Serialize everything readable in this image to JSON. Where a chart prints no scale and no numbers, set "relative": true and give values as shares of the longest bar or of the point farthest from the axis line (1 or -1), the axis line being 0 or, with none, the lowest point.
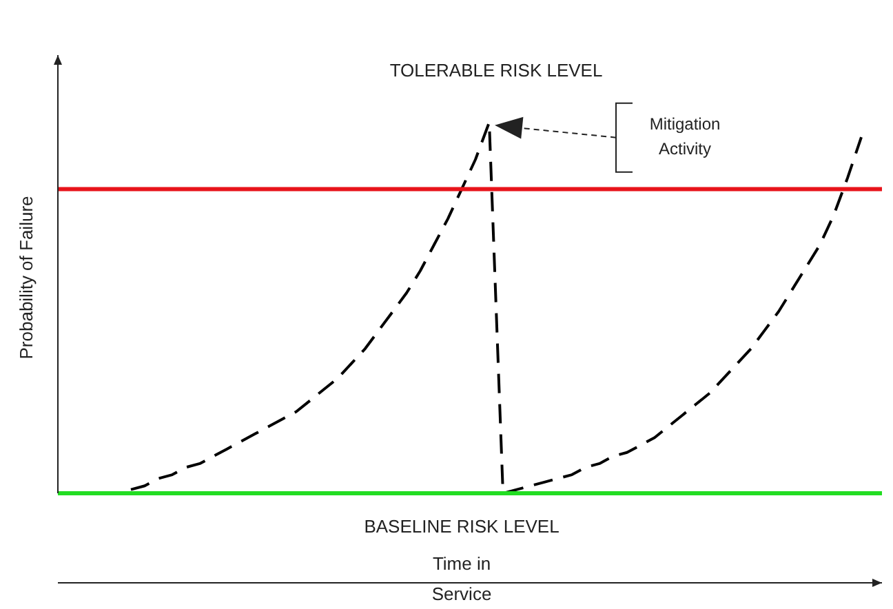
{
  "chart_data": {
    "type": "line",
    "relative": true,
    "ylabel": "Probability of Failure",
    "xlabel": "Time in Service",
    "marker": "none",
    "line_style": "dashed",
    "categories": [
      null,
      null,
      null,
      null,
      null,
      null,
      null,
      null,
      null,
      null,
      null,
      null,
      null,
      null,
      null,
      null,
      null,
      null,
      null,
      null,
      null,
      null,
      null,
      null,
      null,
      null,
      null,
      null,
      null,
      null,
      null,
      null,
      null,
      null,
      null,
      null,
      null,
      null,
      null,
      null,
      null,
      null,
      null,
      null,
      null,
      null,
      null,
      null,
      null,
      null,
      null,
      null,
      null,
      null
    ],
    "series": [
      {
        "color": "#000000",
        "values": [
          0.01,
          0.02,
          0.04,
          0.05,
          0.07,
          0.08,
          0.1,
          0.12,
          0.14,
          0.16,
          0.18,
          0.2,
          0.22,
          0.25,
          0.28,
          0.31,
          0.35,
          0.39,
          0.44,
          0.49,
          0.54,
          0.6,
          0.67,
          0.74,
          0.82,
          0.9,
          1,
          0,
          0.01,
          0.02,
          0.03,
          0.04,
          0.05,
          0.07,
          0.08,
          0.1,
          0.11,
          0.13,
          0.15,
          0.18,
          0.21,
          0.24,
          0.27,
          0.31,
          0.35,
          0.39,
          0.44,
          0.49,
          0.55,
          0.61,
          0.67,
          0.75,
          0.85,
          0.96
        ]
      }
    ],
    "ref_lines": [
      {
        "axis": "y",
        "value": 0.82,
        "color": "#e8141b"
      },
      {
        "axis": "y",
        "value": 0,
        "label": "BASELINE RISK LEVEL",
        "color": "#22dd22"
      }
    ],
    "annotations": [
      "TOLERABLE RISK LEVEL",
      "Mitigation Activity"
    ]
  }
}
